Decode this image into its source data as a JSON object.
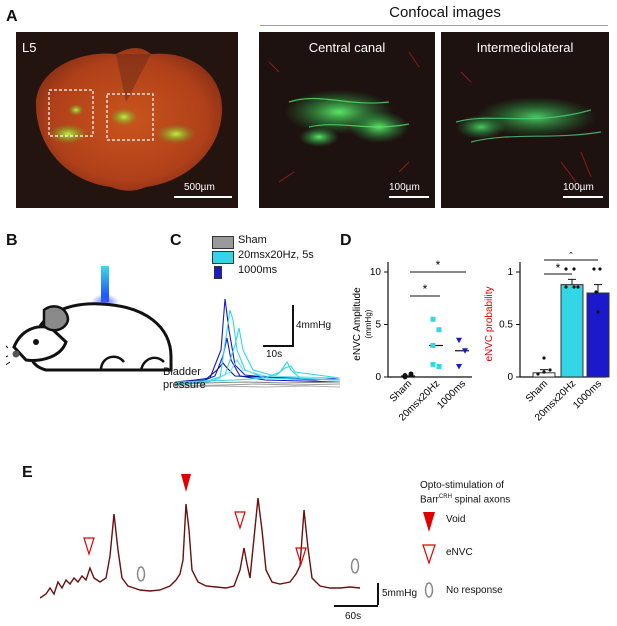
{
  "panels": {
    "A": {
      "letter": "A",
      "header": "Confocal images",
      "image1_label": "L5",
      "image1_scale": "500µm",
      "image2_label": "Central canal",
      "image2_scale": "100µm",
      "image3_label": "Intermediolateral",
      "image3_scale": "100µm"
    },
    "B": {
      "letter": "B"
    },
    "C": {
      "letter": "C",
      "legend": [
        "Sham",
        "20msx20Hz, 5s",
        "1000ms"
      ],
      "scale_y": "4mmHg",
      "scale_x": "10s",
      "trace_label_1": "Bladder",
      "trace_label_2": "pressure"
    },
    "D": {
      "letter": "D"
    },
    "E": {
      "letter": "E",
      "legend_title_1": "Opto-stimulation of",
      "legend_title_2": "Barr",
      "legend_title_sup": "CRH",
      "legend_title_3": " spinal axons",
      "legend_items": [
        "Void",
        "eNVC",
        "No response"
      ],
      "scale_y": "5mmHg",
      "scale_x": "60s"
    }
  },
  "colors": {
    "sham": "#9a9a9a",
    "stim_20hz": "#33d6e6",
    "stim_1000": "#1a1acc",
    "void_marker": "#e00000",
    "trace_E": "#6b0f0f",
    "header_line": "#7fa8d8",
    "ylabel_D2": "#e00000"
  },
  "chart_data": [
    {
      "type": "scatter",
      "ylabel": "eNVC Amplitude",
      "ylabel_unit": "(mmHg)",
      "categories": [
        "Sham",
        "20msx20Hz",
        "1000ms"
      ],
      "ylim": [
        0,
        10
      ],
      "yticks": [
        "0",
        "5",
        "10"
      ],
      "points": {
        "Sham": [
          0.1,
          0.2,
          0.0,
          0.3,
          0.15
        ],
        "20msx20Hz": [
          5.5,
          4.5,
          3.0,
          1.0,
          1.2
        ],
        "1000ms": [
          3.5,
          2.5,
          1.0
        ]
      },
      "means": [
        0.1,
        3.0,
        2.5
      ],
      "significance": [
        "*",
        "*"
      ]
    },
    {
      "type": "bar",
      "ylabel": "eNVC probability",
      "categories": [
        "Sham",
        "20msx20Hz",
        "1000ms"
      ],
      "values": [
        0.04,
        0.88,
        0.8
      ],
      "errors": [
        0.03,
        0.05,
        0.08
      ],
      "ylim": [
        0,
        1
      ],
      "yticks": [
        "0",
        "0.5",
        "1"
      ],
      "significance": [
        "*",
        "*"
      ]
    }
  ]
}
